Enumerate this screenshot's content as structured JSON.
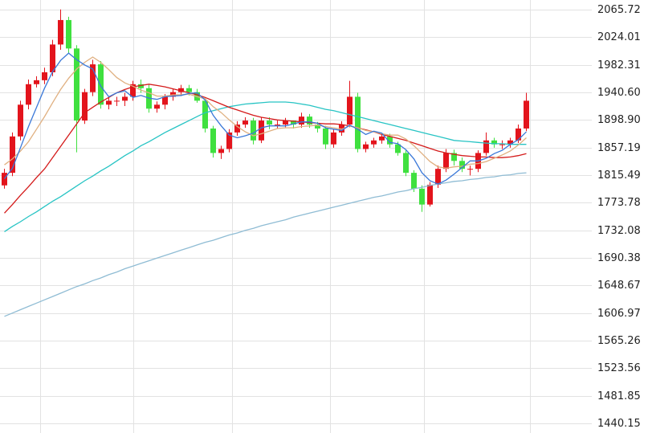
{
  "chart_data": {
    "type": "candlestick",
    "up_color": "#e3141c",
    "down_color": "#3fe03f",
    "grid": true,
    "ylim": [
      1425.6,
      2080.3
    ],
    "yticks": [
      2065.72,
      2024.01,
      1982.31,
      {
        "value": 1940.6,
        "label": "1940.60"
      },
      {
        "value": 1898.9,
        "label": "1898.90"
      },
      1857.19,
      1815.49,
      1773.78,
      1732.08,
      1690.38,
      1648.67,
      1606.97,
      1565.26,
      1523.56,
      1481.85,
      1440.15
    ],
    "open": [
      1800,
      1819,
      1874,
      1922,
      1953,
      1959,
      1971,
      2013,
      2050,
      2007,
      1898,
      1941,
      1983,
      1922,
      1928,
      1928,
      1934,
      1953,
      1947,
      1916,
      1922,
      1934,
      1941,
      1947,
      1941,
      1928,
      1886,
      1849,
      1855,
      1880,
      1892,
      1898,
      1868,
      1898,
      1892,
      1892,
      1898,
      1892,
      1904,
      1892,
      1886,
      1862,
      1880,
      1892,
      1934,
      1855,
      1862,
      1868,
      1874,
      1862,
      1849,
      1819,
      1795,
      1771,
      1801,
      1825,
      1849,
      1837,
      1825,
      1825,
      1849,
      1868,
      1862,
      1862,
      1868,
      1886
    ],
    "high": [
      1825,
      1880,
      1928,
      1960,
      1965,
      1978,
      2020,
      2066,
      2055,
      2012,
      1946,
      1990,
      1988,
      1935,
      1934,
      1940,
      1958,
      1960,
      1952,
      1927,
      1938,
      1946,
      1952,
      1952,
      1946,
      1932,
      1890,
      1860,
      1885,
      1897,
      1903,
      1902,
      1903,
      1903,
      1898,
      1902,
      1898,
      1910,
      1908,
      1896,
      1890,
      1885,
      1897,
      1958,
      1940,
      1866,
      1872,
      1878,
      1878,
      1866,
      1853,
      1823,
      1800,
      1805,
      1830,
      1855,
      1854,
      1842,
      1830,
      1853,
      1880,
      1872,
      1868,
      1872,
      1892,
      1940
    ],
    "low": [
      1795,
      1814,
      1868,
      1915,
      1948,
      1953,
      1965,
      2005,
      2000,
      1850,
      1893,
      1935,
      1916,
      1915,
      1920,
      1920,
      1928,
      1940,
      1910,
      1910,
      1915,
      1928,
      1935,
      1936,
      1925,
      1880,
      1842,
      1840,
      1850,
      1875,
      1887,
      1862,
      1864,
      1885,
      1886,
      1888,
      1886,
      1887,
      1887,
      1880,
      1855,
      1857,
      1875,
      1888,
      1850,
      1850,
      1857,
      1863,
      1857,
      1845,
      1814,
      1790,
      1760,
      1768,
      1796,
      1820,
      1830,
      1820,
      1815,
      1820,
      1845,
      1857,
      1855,
      1857,
      1864,
      1882
    ],
    "close": [
      1819,
      1874,
      1922,
      1953,
      1959,
      1971,
      2013,
      2050,
      2007,
      1898,
      1941,
      1983,
      1922,
      1928,
      1928,
      1934,
      1953,
      1947,
      1916,
      1922,
      1934,
      1941,
      1947,
      1941,
      1928,
      1886,
      1849,
      1855,
      1880,
      1892,
      1898,
      1868,
      1898,
      1892,
      1892,
      1898,
      1892,
      1904,
      1892,
      1886,
      1862,
      1880,
      1892,
      1934,
      1855,
      1862,
      1868,
      1874,
      1862,
      1849,
      1819,
      1795,
      1771,
      1801,
      1825,
      1849,
      1837,
      1825,
      1825,
      1849,
      1868,
      1862,
      1862,
      1868,
      1886,
      1928
    ],
    "series": [
      {
        "color": "#8fbcd4",
        "values": [
          1602,
          1607,
          1612,
          1617,
          1622,
          1627,
          1632,
          1637,
          1642,
          1647,
          1651,
          1656,
          1660,
          1665,
          1669,
          1674,
          1678,
          1682,
          1686,
          1690,
          1694,
          1698,
          1702,
          1706,
          1710,
          1714,
          1717,
          1721,
          1725,
          1728,
          1732,
          1735,
          1739,
          1742,
          1745,
          1748,
          1752,
          1755,
          1758,
          1761,
          1764,
          1767,
          1770,
          1773,
          1776,
          1779,
          1782,
          1784,
          1787,
          1790,
          1792,
          1795,
          1797,
          1800,
          1802,
          1804,
          1806,
          1807,
          1809,
          1810,
          1812,
          1813,
          1815,
          1816,
          1818,
          1819
        ]
      },
      {
        "color": "#27c4c4",
        "values": [
          1730,
          1738,
          1745,
          1753,
          1760,
          1768,
          1776,
          1783,
          1791,
          1799,
          1807,
          1814,
          1822,
          1829,
          1837,
          1845,
          1852,
          1860,
          1866,
          1873,
          1880,
          1886,
          1892,
          1898,
          1904,
          1910,
          1913,
          1916,
          1919,
          1921,
          1923,
          1924,
          1925,
          1926,
          1926,
          1926,
          1925,
          1923,
          1921,
          1918,
          1915,
          1913,
          1910,
          1907,
          1904,
          1901,
          1898,
          1895,
          1892,
          1889,
          1886,
          1883,
          1880,
          1877,
          1874,
          1871,
          1868,
          1867,
          1866,
          1865,
          1864,
          1863,
          1863,
          1862,
          1862,
          1862
        ]
      },
      {
        "color": "#d41a1a",
        "values": [
          1758,
          1771,
          1785,
          1798,
          1812,
          1825,
          1842,
          1859,
          1876,
          1893,
          1910,
          1918,
          1926,
          1933,
          1940,
          1945,
          1949,
          1951,
          1953,
          1951,
          1949,
          1946,
          1943,
          1940,
          1937,
          1933,
          1928,
          1923,
          1918,
          1914,
          1910,
          1906,
          1903,
          1901,
          1899,
          1898,
          1897,
          1896,
          1895,
          1894,
          1893,
          1893,
          1892,
          1890,
          1887,
          1884,
          1881,
          1877,
          1874,
          1871,
          1868,
          1864,
          1860,
          1856,
          1852,
          1849,
          1847,
          1845,
          1844,
          1843,
          1843,
          1842,
          1842,
          1843,
          1845,
          1848
        ]
      },
      {
        "color": "#e0b080",
        "values": [
          1831,
          1840,
          1852,
          1866,
          1885,
          1904,
          1925,
          1945,
          1962,
          1976,
          1986,
          1994,
          1986,
          1975,
          1963,
          1955,
          1950,
          1944,
          1940,
          1935,
          1935,
          1937,
          1937,
          1938,
          1934,
          1931,
          1919,
          1910,
          1899,
          1889,
          1881,
          1875,
          1878,
          1882,
          1886,
          1887,
          1887,
          1889,
          1890,
          1891,
          1889,
          1887,
          1885,
          1890,
          1887,
          1883,
          1881,
          1878,
          1876,
          1876,
          1870,
          1860,
          1848,
          1836,
          1828,
          1826,
          1828,
          1829,
          1832,
          1833,
          1836,
          1841,
          1846,
          1852,
          1861,
          1872
        ]
      },
      {
        "color": "#3a78d8",
        "values": [
          1810,
          1826,
          1857,
          1889,
          1918,
          1947,
          1972,
          1989,
          2000,
          1990,
          1982,
          1976,
          1950,
          1934,
          1940,
          1943,
          1933,
          1936,
          1932,
          1930,
          1934,
          1935,
          1936,
          1939,
          1940,
          1929,
          1906,
          1890,
          1876,
          1872,
          1875,
          1879,
          1887,
          1890,
          1890,
          1890,
          1893,
          1896,
          1896,
          1894,
          1887,
          1885,
          1883,
          1891,
          1885,
          1877,
          1882,
          1879,
          1865,
          1863,
          1854,
          1840,
          1819,
          1807,
          1802,
          1808,
          1817,
          1827,
          1837,
          1837,
          1841,
          1848,
          1853,
          1862,
          1869,
          1881
        ]
      }
    ]
  }
}
